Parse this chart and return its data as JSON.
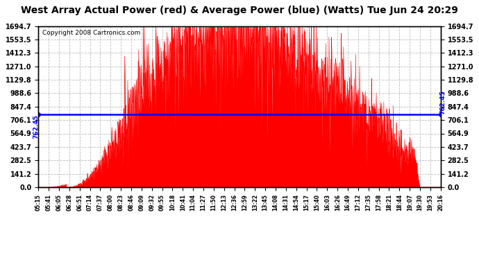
{
  "title": "West Array Actual Power (red) & Average Power (blue) (Watts) Tue Jun 24 20:29",
  "copyright": "Copyright 2008 Cartronics.com",
  "avg_power": 762.45,
  "ymax": 1694.7,
  "ymin": 0.0,
  "yticks": [
    0.0,
    141.2,
    282.5,
    423.7,
    564.9,
    706.1,
    847.4,
    988.6,
    1129.8,
    1271.0,
    1412.3,
    1553.5,
    1694.7
  ],
  "xtick_labels": [
    "05:15",
    "05:41",
    "06:05",
    "06:28",
    "06:51",
    "07:14",
    "07:37",
    "08:00",
    "08:23",
    "08:46",
    "09:09",
    "09:32",
    "09:55",
    "10:18",
    "10:41",
    "11:04",
    "11:27",
    "11:50",
    "12:13",
    "12:36",
    "12:59",
    "13:22",
    "13:45",
    "14:08",
    "14:31",
    "14:54",
    "15:17",
    "15:40",
    "16:03",
    "16:26",
    "16:49",
    "17:12",
    "17:35",
    "17:58",
    "18:21",
    "18:44",
    "19:07",
    "19:30",
    "19:53",
    "20:16"
  ],
  "fill_color": "#FF0000",
  "line_color": "#0000FF",
  "bg_color": "#FFFFFF",
  "grid_color": "#BBBBBB",
  "title_fontsize": 10,
  "copyright_fontsize": 6.5,
  "tick_fontsize": 7,
  "xtick_fontsize": 5.5
}
